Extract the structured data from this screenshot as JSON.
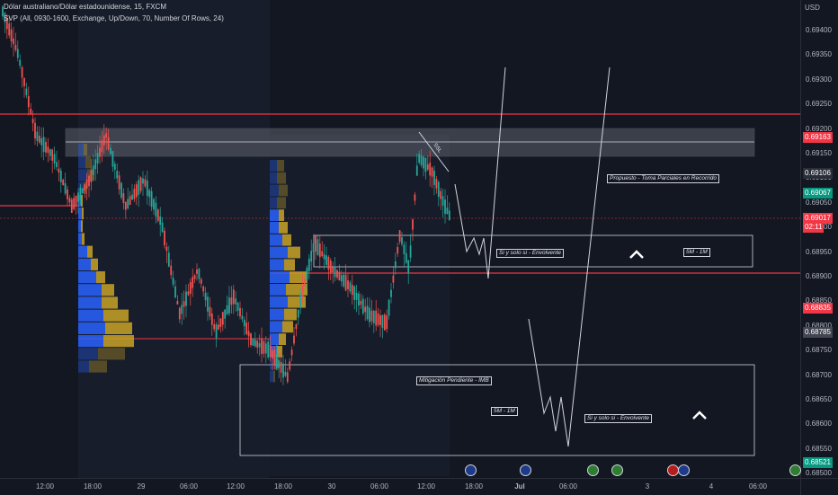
{
  "header": {
    "symbol_line": "Dólar australiano/Dólar estadounidense, 15, FXCM",
    "indicator_line": "SVP (All, 0930-1600, Exchange, Up/Down, 70, Number Of Rows, 24)"
  },
  "price_axis": {
    "currency": "USD",
    "ticks": [
      "0.69400",
      "0.69350",
      "0.69300",
      "0.69250",
      "0.69200",
      "0.69150",
      "0.69100",
      "0.69050",
      "0.69000",
      "0.68950",
      "0.68900",
      "0.68850",
      "0.68800",
      "0.68750",
      "0.68700",
      "0.68650",
      "0.68600",
      "0.68550",
      "0.68500"
    ]
  },
  "price_tags": [
    {
      "label": "0.69163",
      "color": "#f23645"
    },
    {
      "label": "0.69106",
      "color": "#2a2e39"
    },
    {
      "label": "0.69067",
      "color": "#089981"
    },
    {
      "label": "0.69017",
      "color": "#f23645"
    },
    {
      "label": "02:11",
      "color": "#f23645"
    },
    {
      "label": "0.68835",
      "color": "#f23645"
    },
    {
      "label": "0.68785",
      "color": "#434651"
    },
    {
      "label": "0.68521",
      "color": "#089981"
    }
  ],
  "time_axis": [
    "12:00",
    "18:00",
    "29",
    "06:00",
    "12:00",
    "18:00",
    "30",
    "06:00",
    "12:00",
    "18:00",
    "Jul",
    "06:00",
    "3",
    "4",
    "06:00"
  ],
  "annotations": {
    "ssl": "SSL",
    "propuesto": "Propuesto - Toma Parciales en Recorrido",
    "si_solo_si_1": "Si y solo si - Envolvente",
    "tf_1": "5M - 1M",
    "mitigacion": "Mitigación Pendiente -  IMB",
    "tf_2": "5M - 1M",
    "si_solo_si_2": "Si y solo si - Envolvente"
  },
  "icons": {
    "up_chevron_1": "chevron-up-icon",
    "up_chevron_2": "chevron-up-icon",
    "event_flags": "flag-icon"
  },
  "colors": {
    "background": "#131722",
    "bull": "#26a69a",
    "bear": "#ef5350",
    "red_line": "#f23645",
    "vp_up": "#2962ff",
    "vp_down": "#c9a227"
  }
}
